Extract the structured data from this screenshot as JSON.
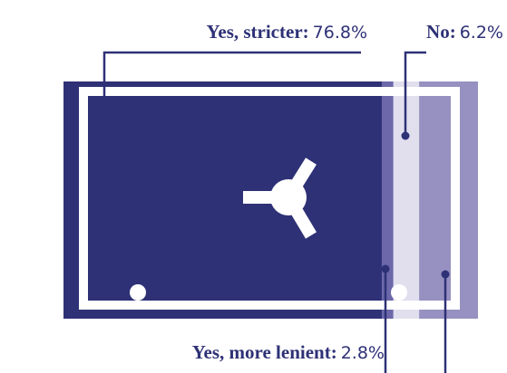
{
  "chart_data": {
    "type": "bar",
    "categories": [
      "Yes, stricter:",
      "Yes, more lenient:",
      "No:",
      null
    ],
    "values": [
      76.8,
      2.8,
      6.2,
      14.2
    ],
    "value_labels": [
      "76.8%",
      "2.8%",
      "6.2%",
      null
    ],
    "colors": [
      "#2e3176",
      "#6c68aa",
      "#e1dfee",
      "#9691c0"
    ]
  }
}
